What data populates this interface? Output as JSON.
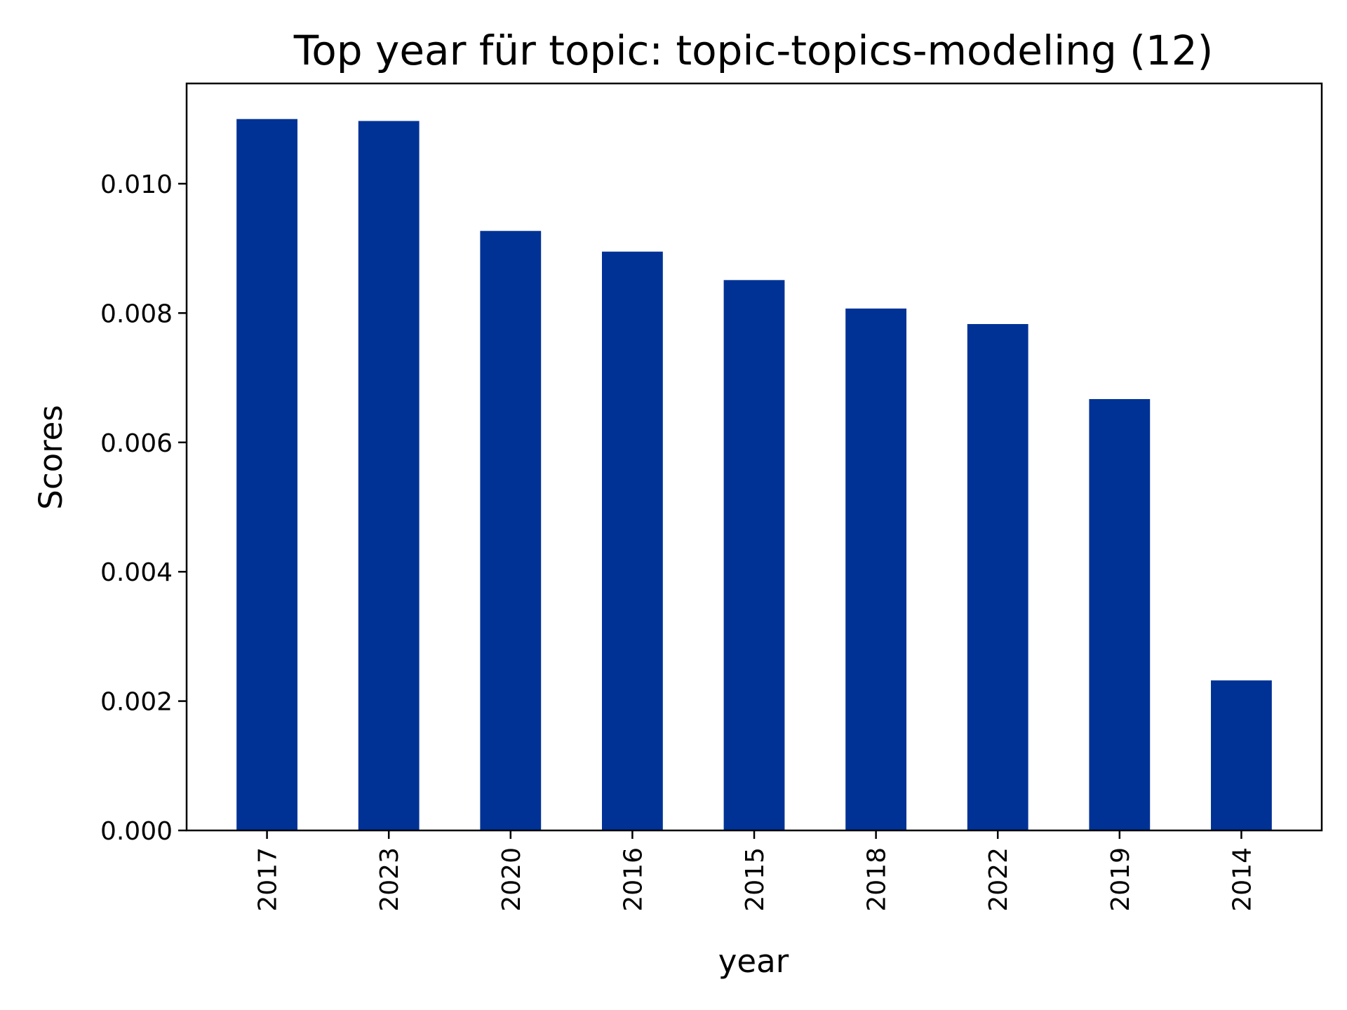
{
  "chart_data": {
    "type": "bar",
    "title": "Top year für topic: topic-topics-modeling (12)",
    "xlabel": "year",
    "ylabel": "Scores",
    "categories": [
      "2017",
      "2023",
      "2020",
      "2016",
      "2015",
      "2018",
      "2022",
      "2019",
      "2014"
    ],
    "values": [
      0.011,
      0.01097,
      0.00927,
      0.00895,
      0.00851,
      0.00807,
      0.00783,
      0.00667,
      0.00232
    ],
    "ylim": [
      0,
      0.01155
    ],
    "yticks": [
      0.0,
      0.002,
      0.004,
      0.006,
      0.008,
      0.01
    ],
    "ytick_labels": [
      "0.000",
      "0.002",
      "0.004",
      "0.006",
      "0.008",
      "0.010"
    ],
    "grid": false,
    "legend": "none",
    "bar_color": "#003296"
  }
}
